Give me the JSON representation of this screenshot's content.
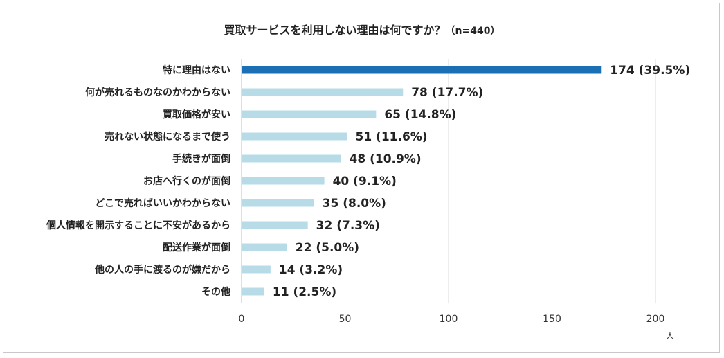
{
  "title": "買取サービスを利用しない理由は何ですか？",
  "subtitle": "（n=440）",
  "chart_data": {
    "type": "bar",
    "orientation": "horizontal",
    "title": "買取サービスを利用しない理由は何ですか？（n=440）",
    "categories": [
      "特に理由はない",
      "何が売れるものなのかわからない",
      "買取価格が安い",
      "売れない状態になるまで使う",
      "手続きが面倒",
      "お店へ行くのが面倒",
      "どこで売ればいいかわからない",
      "個人情報を開示することに不安があるから",
      "配送作業が面倒",
      "他の人の手に渡るのが嫌だから",
      "その他"
    ],
    "values": [
      174,
      78,
      65,
      51,
      48,
      40,
      35,
      32,
      22,
      14,
      11
    ],
    "data_labels": [
      "174 (39.5%)",
      "78 (17.7%)",
      "65 (14.8%)",
      "51 (11.6%)",
      "48 (10.9%)",
      "40 (9.1%)",
      "35 (8.0%)",
      "32 (7.3%)",
      "22 (5.0%)",
      "14 (3.2%)",
      "11 (2.5%)"
    ],
    "xlim": [
      0,
      200
    ],
    "xticks": [
      "0",
      "50",
      "100",
      "150",
      "200"
    ],
    "xunit": "人",
    "grid": true,
    "colors": {
      "highlight": "#1a6fb5",
      "default": "#b7dce8",
      "grid": "#d9d9d9"
    }
  }
}
